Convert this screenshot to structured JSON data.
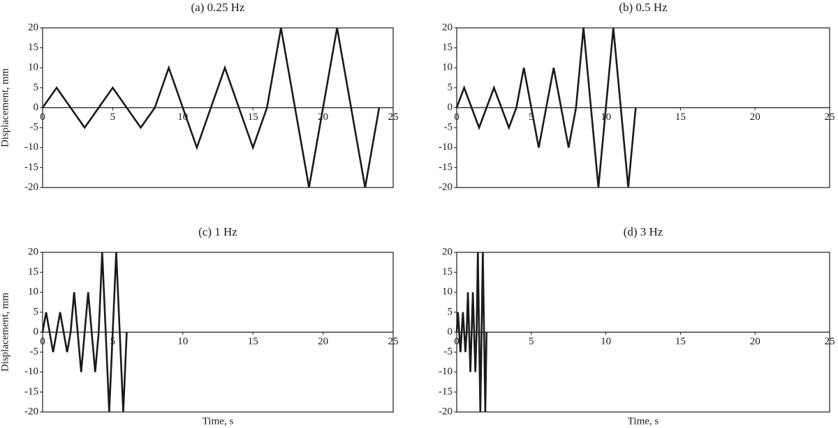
{
  "chart_data": [
    {
      "type": "line",
      "title": "(a) 0.25 Hz",
      "ylabel": "Displacement, mm",
      "color": "#1a1a1a",
      "x": [
        0,
        1,
        2,
        3,
        4,
        5,
        6,
        7,
        8,
        9,
        10,
        11,
        12,
        13,
        14,
        15,
        16,
        17,
        18,
        19,
        20,
        21,
        22,
        23,
        24
      ],
      "values": [
        0,
        5,
        0,
        -5,
        0,
        5,
        0,
        -5,
        0,
        10,
        0,
        -10,
        0,
        10,
        0,
        -10,
        0,
        20,
        0,
        -20,
        0,
        20,
        0,
        -20,
        0
      ],
      "xlim": [
        0,
        25
      ],
      "xticks": [
        0,
        5,
        10,
        15,
        20,
        25
      ],
      "ylim": [
        -20,
        20
      ],
      "yticks": [
        -20,
        -15,
        -10,
        -5,
        0,
        5,
        10,
        15,
        20
      ]
    },
    {
      "type": "line",
      "title": "(b) 0.5 Hz",
      "color": "#1a1a1a",
      "x": [
        0,
        0.5,
        1,
        1.5,
        2,
        2.5,
        3,
        3.5,
        4,
        4.5,
        5,
        5.5,
        6,
        6.5,
        7,
        7.5,
        8,
        8.5,
        9,
        9.5,
        10,
        10.5,
        11,
        11.5,
        12
      ],
      "values": [
        0,
        5,
        0,
        -5,
        0,
        5,
        0,
        -5,
        0,
        10,
        0,
        -10,
        0,
        10,
        0,
        -10,
        0,
        20,
        0,
        -20,
        0,
        20,
        0,
        -20,
        0
      ],
      "xlim": [
        0,
        25
      ],
      "xticks": [
        0,
        5,
        10,
        15,
        20,
        25
      ],
      "ylim": [
        -20,
        20
      ],
      "yticks": [
        -20,
        -15,
        -10,
        -5,
        0,
        5,
        10,
        15,
        20
      ]
    },
    {
      "type": "line",
      "title": "(c) 1 Hz",
      "ylabel": "Displacement, mm",
      "xlabel": "Time, s",
      "color": "#1a1a1a",
      "x": [
        0,
        0.25,
        0.5,
        0.75,
        1,
        1.25,
        1.5,
        1.75,
        2,
        2.25,
        2.5,
        2.75,
        3,
        3.25,
        3.5,
        3.75,
        4,
        4.25,
        4.5,
        4.75,
        5,
        5.25,
        5.5,
        5.75,
        6
      ],
      "values": [
        0,
        5,
        0,
        -5,
        0,
        5,
        0,
        -5,
        0,
        10,
        0,
        -10,
        0,
        10,
        0,
        -10,
        0,
        20,
        0,
        -20,
        0,
        20,
        0,
        -20,
        0
      ],
      "xlim": [
        0,
        25
      ],
      "xticks": [
        0,
        5,
        10,
        15,
        20,
        25
      ],
      "ylim": [
        -20,
        20
      ],
      "yticks": [
        -20,
        -15,
        -10,
        -5,
        0,
        5,
        10,
        15,
        20
      ]
    },
    {
      "type": "line",
      "title": "(d) 3 Hz",
      "xlabel": "Time, s",
      "color": "#1a1a1a",
      "x": [
        0,
        0.083,
        0.167,
        0.25,
        0.333,
        0.417,
        0.5,
        0.583,
        0.667,
        0.75,
        0.833,
        0.917,
        1,
        1.083,
        1.167,
        1.25,
        1.333,
        1.417,
        1.5,
        1.583,
        1.667,
        1.75,
        1.833,
        1.917,
        2
      ],
      "values": [
        0,
        5,
        0,
        -5,
        0,
        5,
        0,
        -5,
        0,
        10,
        0,
        -10,
        0,
        10,
        0,
        -10,
        0,
        20,
        0,
        -20,
        0,
        20,
        0,
        -20,
        0
      ],
      "xlim": [
        0,
        25
      ],
      "xticks": [
        0,
        5,
        10,
        15,
        20,
        25
      ],
      "ylim": [
        -20,
        20
      ],
      "yticks": [
        -20,
        -15,
        -10,
        -5,
        0,
        5,
        10,
        15,
        20
      ]
    }
  ]
}
